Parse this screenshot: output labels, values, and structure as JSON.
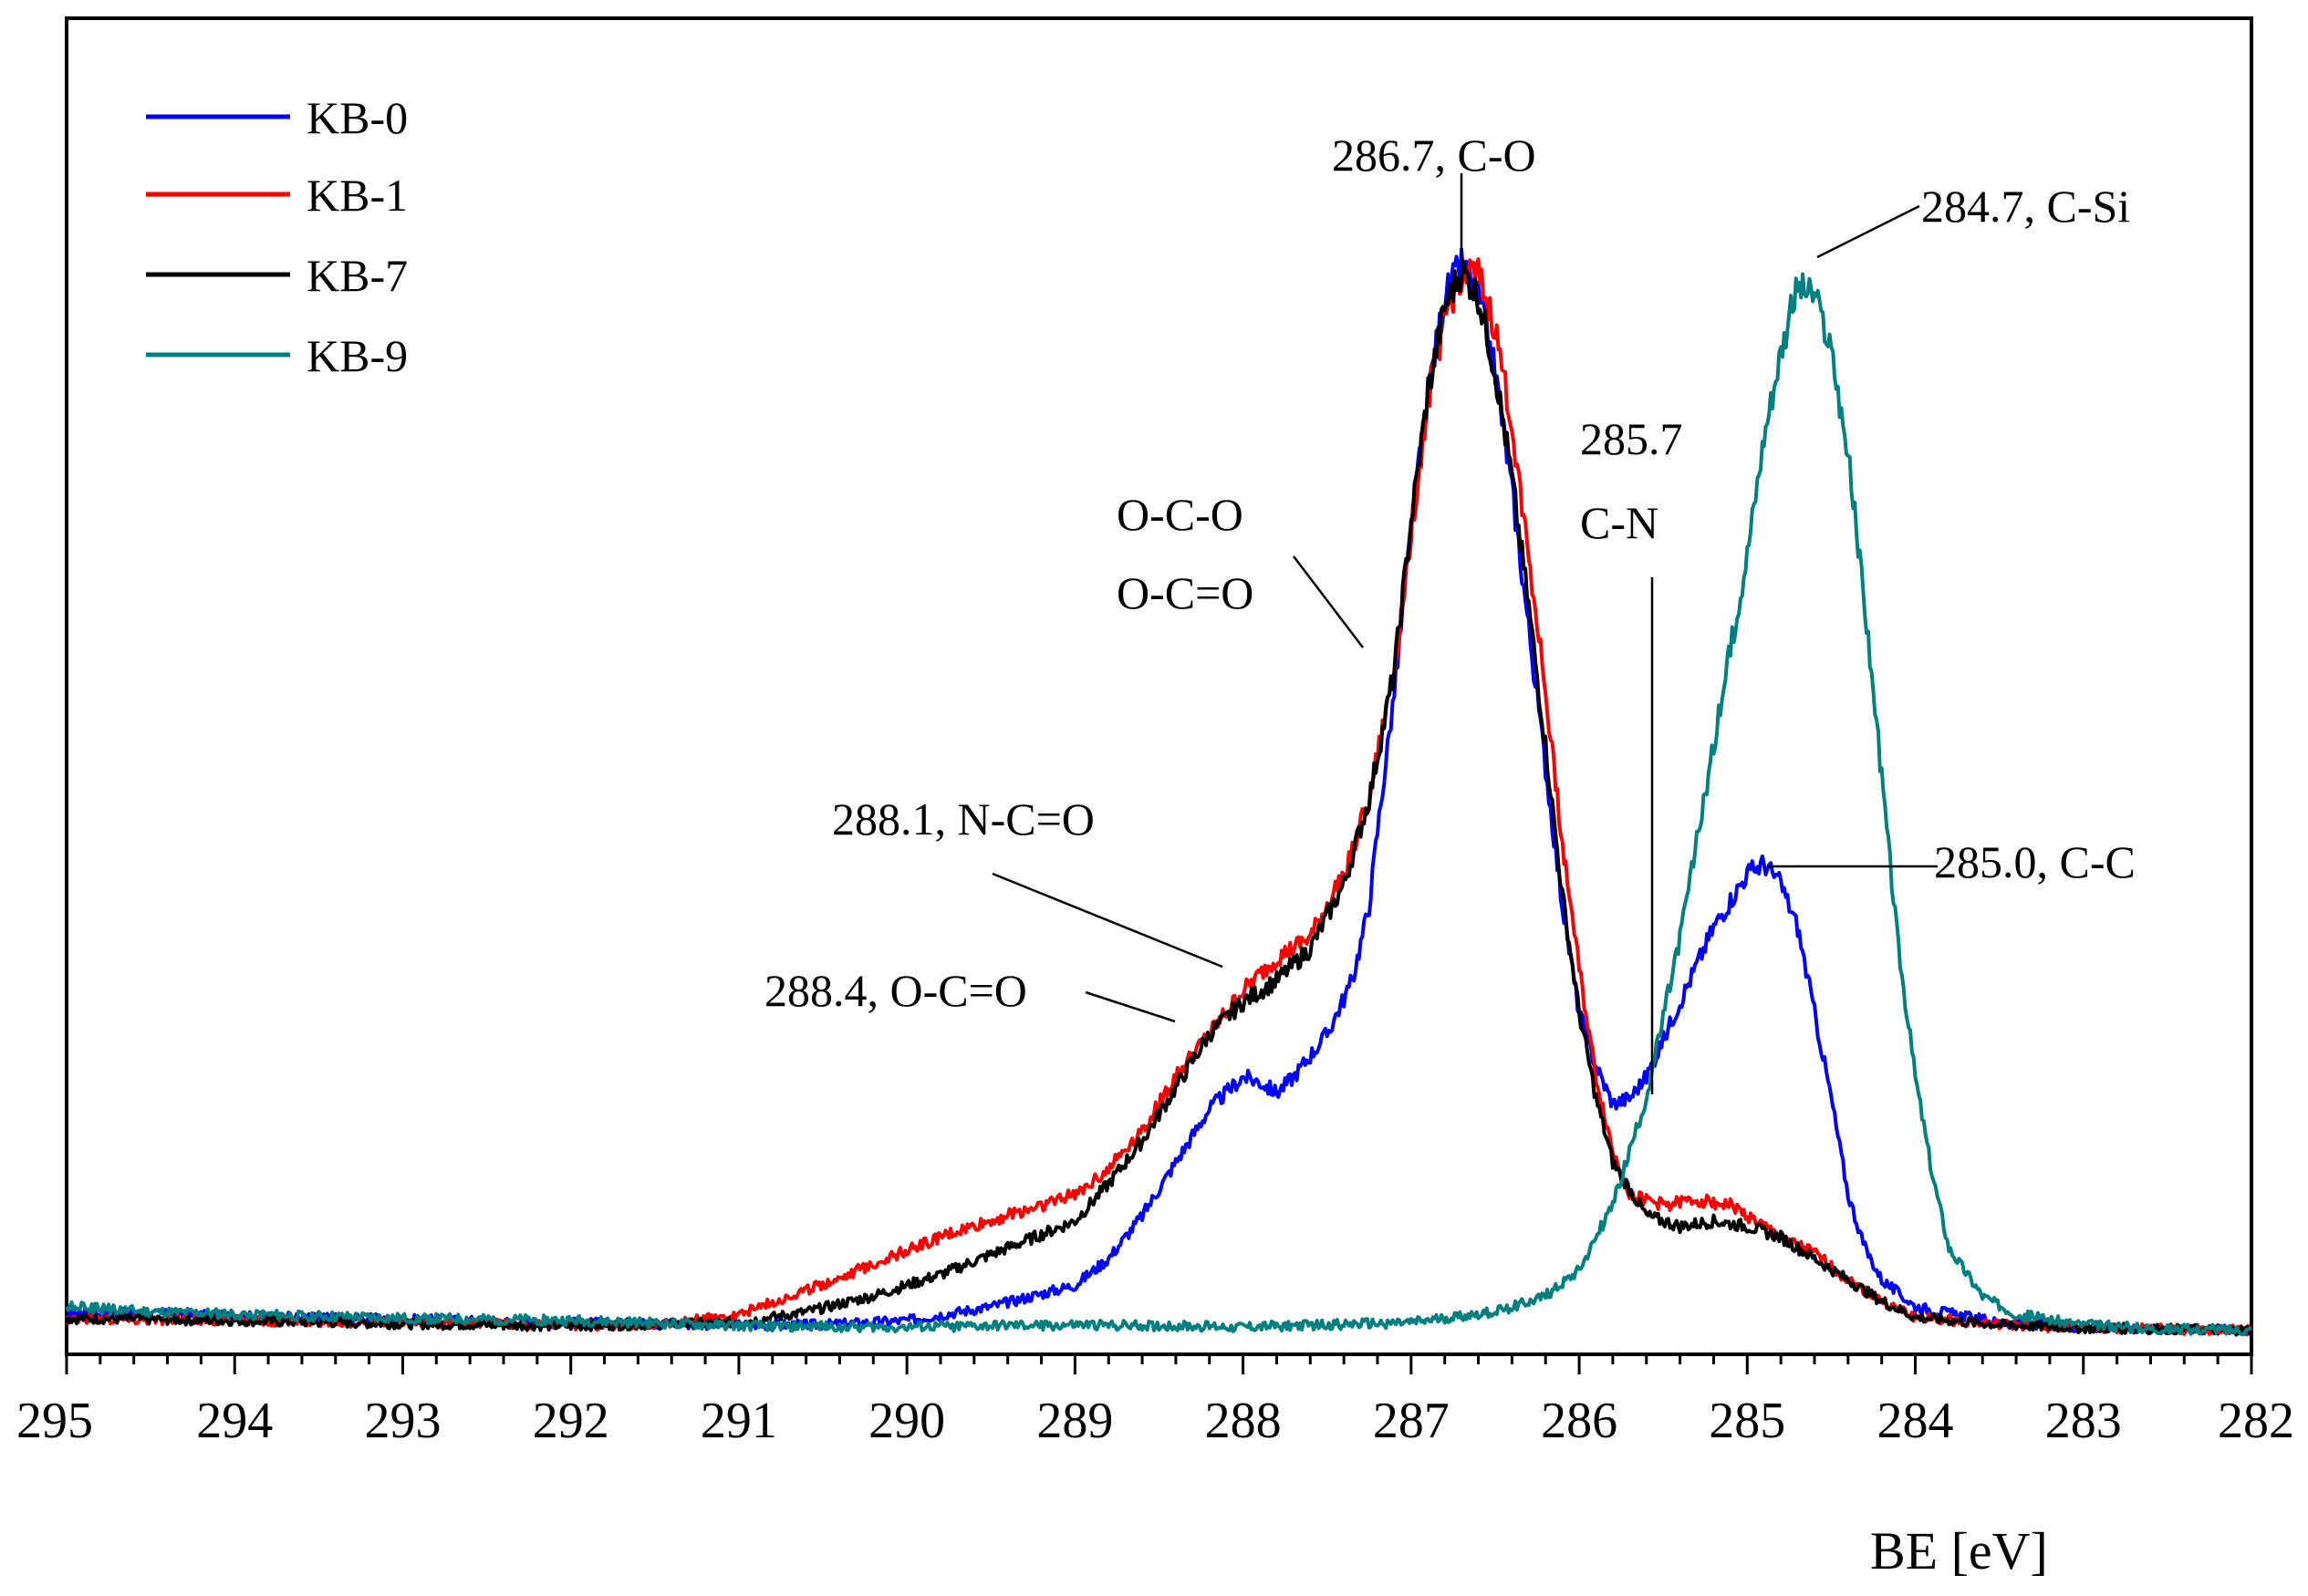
{
  "chart_data": {
    "type": "line",
    "title": "",
    "xlabel": "BE [eV]",
    "ylabel": "",
    "xlim": [
      295,
      282
    ],
    "x_reversed": true,
    "ylim": [
      0,
      100
    ],
    "yticks_visible": false,
    "grid": false,
    "legend_position": "top-left",
    "xticks": [
      "295",
      "294",
      "293",
      "292",
      "291",
      "290",
      "289",
      "288",
      "287",
      "286",
      "285",
      "284",
      "283",
      "282"
    ],
    "series": [
      {
        "name": "KB-0",
        "color": "#0000ff",
        "points": [
          [
            295,
            2
          ],
          [
            294,
            1.6
          ],
          [
            293,
            1.3
          ],
          [
            292,
            1
          ],
          [
            291,
            0.8
          ],
          [
            290.5,
            0.8
          ],
          [
            290,
            1.2
          ],
          [
            289.5,
            2.5
          ],
          [
            289,
            4.5
          ],
          [
            288.8,
            7
          ],
          [
            288.6,
            11
          ],
          [
            288.4,
            16
          ],
          [
            288.2,
            21
          ],
          [
            288,
            24
          ],
          [
            287.9,
            23.5
          ],
          [
            287.8,
            22.5
          ],
          [
            287.7,
            24
          ],
          [
            287.5,
            28
          ],
          [
            287.35,
            33
          ],
          [
            287.25,
            40
          ],
          [
            287.2,
            47
          ],
          [
            287.1,
            60
          ],
          [
            287,
            75
          ],
          [
            286.9,
            88
          ],
          [
            286.8,
            97
          ],
          [
            286.7,
            100
          ],
          [
            286.6,
            97
          ],
          [
            286.5,
            90
          ],
          [
            286.4,
            79
          ],
          [
            286.3,
            66
          ],
          [
            286.2,
            53
          ],
          [
            286.1,
            40
          ],
          [
            286,
            30
          ],
          [
            285.9,
            25
          ],
          [
            285.8,
            21.5
          ],
          [
            285.7,
            22
          ],
          [
            285.6,
            24
          ],
          [
            285.4,
            31
          ],
          [
            285.2,
            38
          ],
          [
            285,
            43
          ],
          [
            284.9,
            44
          ],
          [
            284.8,
            42
          ],
          [
            284.7,
            38
          ],
          [
            284.6,
            30
          ],
          [
            284.5,
            22
          ],
          [
            284.4,
            13
          ],
          [
            284.3,
            8
          ],
          [
            284.2,
            5
          ],
          [
            284,
            2.5
          ],
          [
            283.5,
            1
          ],
          [
            283,
            0.6
          ],
          [
            282.5,
            0.4
          ],
          [
            282,
            0.3
          ]
        ]
      },
      {
        "name": "KB-1",
        "color": "#ff0000",
        "points": [
          [
            295,
            1.4
          ],
          [
            294,
            1.2
          ],
          [
            293,
            1
          ],
          [
            292,
            0.8
          ],
          [
            291.5,
            0.7
          ],
          [
            291,
            1.8
          ],
          [
            290.6,
            4
          ],
          [
            290.2,
            6.5
          ],
          [
            289.8,
            9
          ],
          [
            289.4,
            11
          ],
          [
            289,
            13
          ],
          [
            288.8,
            15.5
          ],
          [
            288.6,
            19
          ],
          [
            288.4,
            24
          ],
          [
            288.2,
            28
          ],
          [
            288,
            32
          ],
          [
            287.8,
            35
          ],
          [
            287.6,
            37
          ],
          [
            287.4,
            43
          ],
          [
            287.25,
            50
          ],
          [
            287.1,
            62
          ],
          [
            287,
            75
          ],
          [
            286.9,
            87
          ],
          [
            286.8,
            95
          ],
          [
            286.7,
            99
          ],
          [
            286.6,
            99
          ],
          [
            286.5,
            94
          ],
          [
            286.4,
            85
          ],
          [
            286.3,
            73
          ],
          [
            286.2,
            60
          ],
          [
            286.1,
            46
          ],
          [
            286,
            34
          ],
          [
            285.9,
            24
          ],
          [
            285.8,
            17
          ],
          [
            285.7,
            13
          ],
          [
            285.5,
            12
          ],
          [
            285.3,
            12.5
          ],
          [
            285.1,
            12
          ],
          [
            285,
            11
          ],
          [
            284.8,
            9
          ],
          [
            284.6,
            7.5
          ],
          [
            284.4,
            5
          ],
          [
            284.2,
            3
          ],
          [
            284,
            1.5
          ],
          [
            283.5,
            0.8
          ],
          [
            283,
            0.5
          ],
          [
            282.5,
            0.4
          ],
          [
            282,
            0.3
          ]
        ]
      },
      {
        "name": "KB-7",
        "color": "#000000",
        "points": [
          [
            295,
            1.4
          ],
          [
            294,
            1.2
          ],
          [
            293,
            0.9
          ],
          [
            292,
            0.7
          ],
          [
            291,
            1
          ],
          [
            290.6,
            2
          ],
          [
            290.2,
            3.5
          ],
          [
            289.8,
            5.5
          ],
          [
            289.4,
            8
          ],
          [
            289,
            10.5
          ],
          [
            288.8,
            14
          ],
          [
            288.6,
            18
          ],
          [
            288.4,
            23
          ],
          [
            288.2,
            28
          ],
          [
            288,
            31
          ],
          [
            287.8,
            33
          ],
          [
            287.6,
            36
          ],
          [
            287.4,
            42
          ],
          [
            287.25,
            50
          ],
          [
            287.1,
            62
          ],
          [
            287,
            76
          ],
          [
            286.9,
            88
          ],
          [
            286.8,
            96
          ],
          [
            286.7,
            99.5
          ],
          [
            286.6,
            97
          ],
          [
            286.5,
            90
          ],
          [
            286.4,
            80
          ],
          [
            286.3,
            68
          ],
          [
            286.2,
            55
          ],
          [
            286.1,
            41
          ],
          [
            286,
            30
          ],
          [
            285.9,
            22
          ],
          [
            285.8,
            16
          ],
          [
            285.6,
            11
          ],
          [
            285.4,
            10
          ],
          [
            285.2,
            10.5
          ],
          [
            285,
            10
          ],
          [
            284.8,
            9
          ],
          [
            284.6,
            7
          ],
          [
            284.4,
            5
          ],
          [
            284.2,
            3
          ],
          [
            284,
            1.5
          ],
          [
            283.5,
            0.8
          ],
          [
            283,
            0.5
          ],
          [
            282.5,
            0.4
          ],
          [
            282,
            0.3
          ]
        ]
      },
      {
        "name": "KB-9",
        "color": "#008080",
        "points": [
          [
            295,
            2.5
          ],
          [
            294.5,
            2
          ],
          [
            294,
            1.8
          ],
          [
            293.5,
            1.6
          ],
          [
            293,
            1.4
          ],
          [
            292,
            1.2
          ],
          [
            291,
            0.7
          ],
          [
            290,
            0.6
          ],
          [
            289,
            0.8
          ],
          [
            288,
            0.6
          ],
          [
            287,
            1
          ],
          [
            286.5,
            2
          ],
          [
            286.2,
            3.5
          ],
          [
            286,
            6
          ],
          [
            285.8,
            12
          ],
          [
            285.6,
            22
          ],
          [
            285.4,
            37
          ],
          [
            285.2,
            55
          ],
          [
            285,
            73
          ],
          [
            284.9,
            84
          ],
          [
            284.8,
            92
          ],
          [
            284.7,
            98
          ],
          [
            284.6,
            97
          ],
          [
            284.5,
            92
          ],
          [
            284.4,
            82
          ],
          [
            284.3,
            68
          ],
          [
            284.2,
            52
          ],
          [
            284.1,
            36
          ],
          [
            284,
            24
          ],
          [
            283.9,
            15
          ],
          [
            283.8,
            8
          ],
          [
            283.6,
            3.5
          ],
          [
            283.4,
            1.8
          ],
          [
            283,
            0.8
          ],
          [
            282.5,
            0.4
          ],
          [
            282,
            0.3
          ]
        ]
      }
    ],
    "annotations": [
      {
        "text": "286.7, C-O",
        "x": 286.7,
        "y": 100
      },
      {
        "text": "284.7, C-Si",
        "x": 284.7,
        "y": 98
      },
      {
        "text": "285.7",
        "x": 285.7,
        "y": 22
      },
      {
        "text": "C-N",
        "x": 285.7,
        "y": 22
      },
      {
        "text": "O-C-O",
        "x": 287.25,
        "y": 62
      },
      {
        "text": "O-C=O",
        "x": 287.25,
        "y": 62
      },
      {
        "text": "288.1, N-C=O",
        "x": 288.1,
        "y": 33
      },
      {
        "text": "288.4, O-C=O",
        "x": 288.4,
        "y": 29
      },
      {
        "text": "285.0, C-C",
        "x": 285.0,
        "y": 44
      }
    ]
  }
}
